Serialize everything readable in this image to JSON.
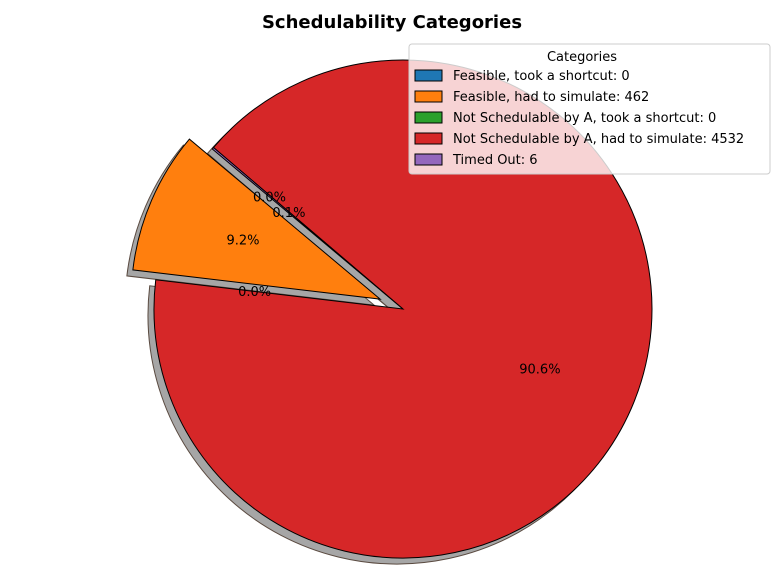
{
  "chart_data": {
    "type": "pie",
    "title": "Schedulability Categories",
    "legend_title": "Categories",
    "legend_position": "top-right",
    "shadow": true,
    "start_angle_deg": 140,
    "slices": [
      {
        "label": "Feasible, took a shortcut: 0",
        "value": 0,
        "percent_label": "0.0%",
        "color": "#1f77b4",
        "explode": true
      },
      {
        "label": "Feasible, had to simulate: 462",
        "value": 462,
        "percent_label": "9.2%",
        "color": "#ff7f0e",
        "explode": true
      },
      {
        "label": "Not Schedulable by A, took a shortcut: 0",
        "value": 0,
        "percent_label": "0.0%",
        "color": "#2ca02c",
        "explode": false
      },
      {
        "label": "Not Schedulable by A, had to simulate: 4532",
        "value": 4532,
        "percent_label": "90.6%",
        "color": "#d62728",
        "explode": false
      },
      {
        "label": "Timed Out: 6",
        "value": 6,
        "percent_label": "0.1%",
        "color": "#9467bd",
        "explode": false
      }
    ]
  }
}
